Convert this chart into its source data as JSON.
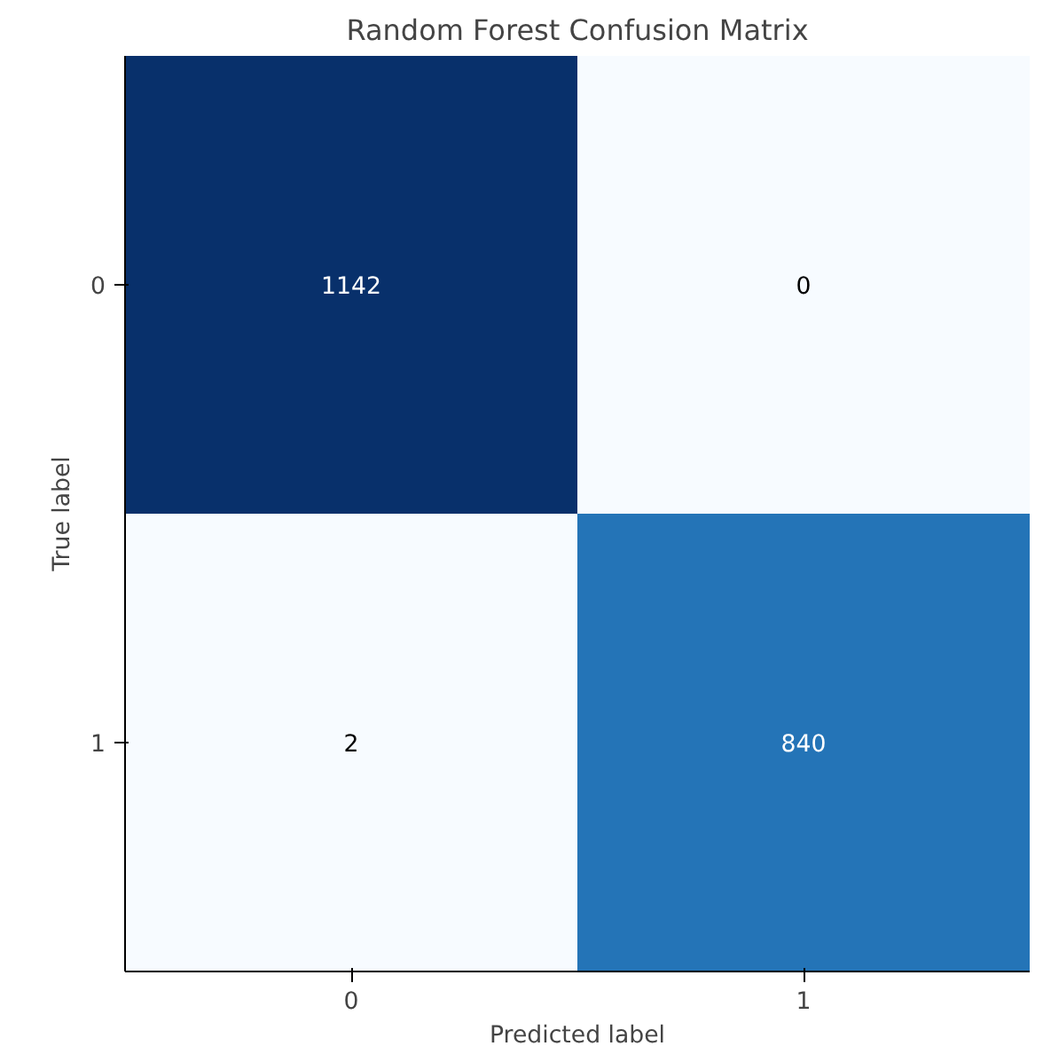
{
  "chart_data": {
    "type": "heatmap",
    "title": "Random Forest Confusion Matrix",
    "xlabel": "Predicted label",
    "ylabel": "True label",
    "categories": [
      "0",
      "1"
    ],
    "y_categories": [
      "0",
      "1"
    ],
    "cells": [
      [
        1142,
        0
      ],
      [
        2,
        840
      ]
    ],
    "data_labels": true
  }
}
